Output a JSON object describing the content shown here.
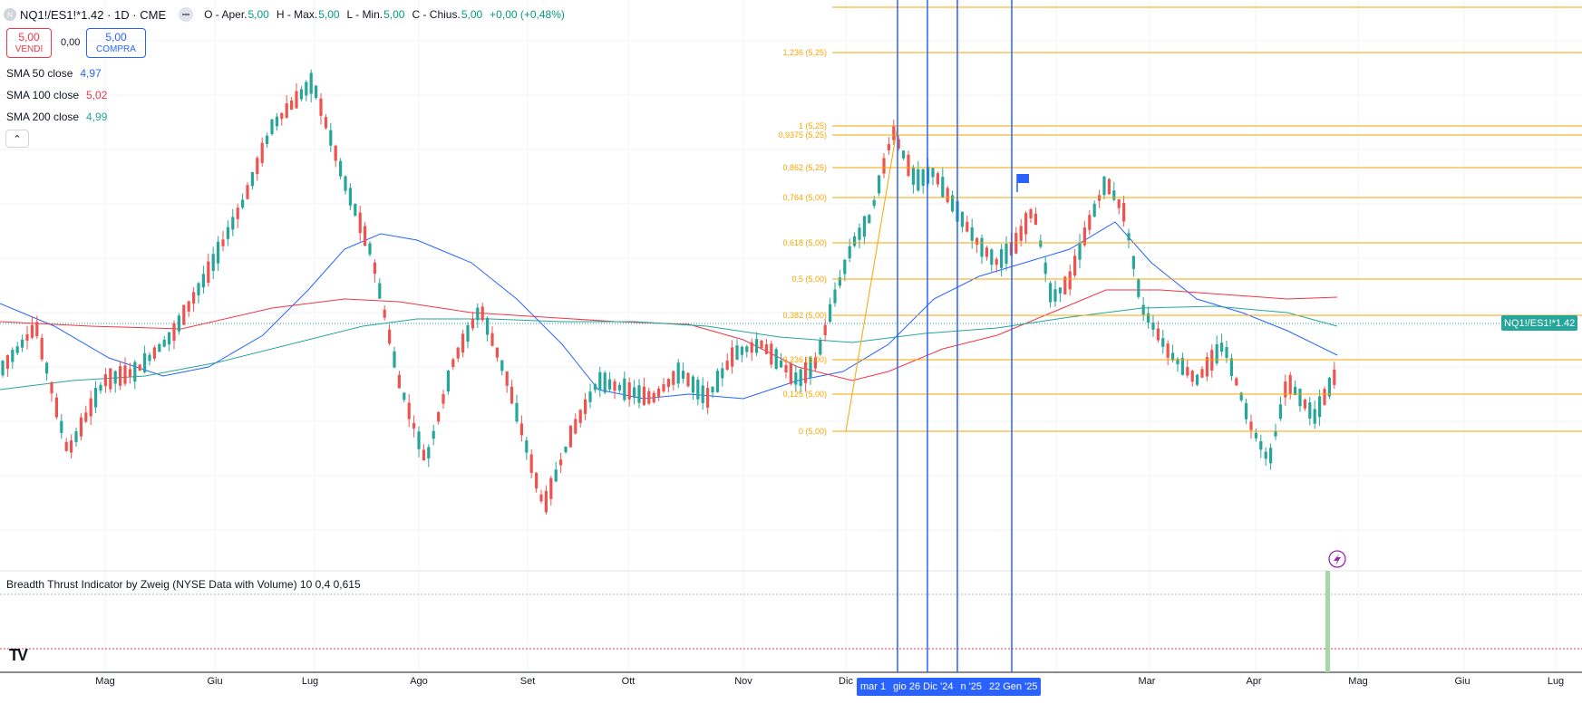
{
  "header": {
    "symbol_icon": "N",
    "title": "NQ1!/ES1!*1.42 · 1D · CME",
    "ohlc": [
      {
        "key": "O - Aper.",
        "value": "5,00"
      },
      {
        "key": "H - Max.",
        "value": "5,00"
      },
      {
        "key": "L - Min.",
        "value": "5,00"
      },
      {
        "key": "C - Chius.",
        "value": "5,00"
      }
    ],
    "change": "+0,00 (+0,48%)"
  },
  "trade": {
    "sell_price": "5,00",
    "sell_label": "VENDI",
    "spread": "0,00",
    "buy_price": "5,00",
    "buy_label": "COMPRA"
  },
  "indicators": [
    {
      "label": "SMA 50 close",
      "value": "4,97",
      "color": "#2962ff"
    },
    {
      "label": "SMA 100 close",
      "value": "5,02",
      "color": "#f23645"
    },
    {
      "label": "SMA 200 close",
      "value": "4,99",
      "color": "#26a69a"
    }
  ],
  "collapse_icon": "chevron-up-icon",
  "breadth_indicator": {
    "title": "Breadth Thrust Indicator by Zweig (NYSE Data with Volume) 10 0,4 0,615"
  },
  "price_tag": "NQ1!/ES1!*1.42",
  "fib_levels": [
    "1,236 (5,25)",
    "1 (5,25)",
    "0,9375 (5,25)",
    "0,862 (5,25)",
    "0,764 (5,00)",
    "0,618 (5,00)",
    "0,5 (5,00)",
    "0,382 (5,00)",
    "0,236 (5,00)",
    "0,125 (5,00)",
    "0 (5,00)"
  ],
  "time_axis": [
    "Mag",
    "Giu",
    "Lug",
    "Ago",
    "Set",
    "Ott",
    "Nov",
    "Dic",
    "Mar",
    "Apr",
    "Mag",
    "Giu",
    "Lug"
  ],
  "crosshair_dates": [
    "mar 1",
    "gio 26 Dic '24",
    "n '25",
    "22 Gen '25"
  ],
  "colors": {
    "up": "#26a69a",
    "down": "#ef5350",
    "fib": "#f7a600",
    "vline": "#2962ff"
  }
}
